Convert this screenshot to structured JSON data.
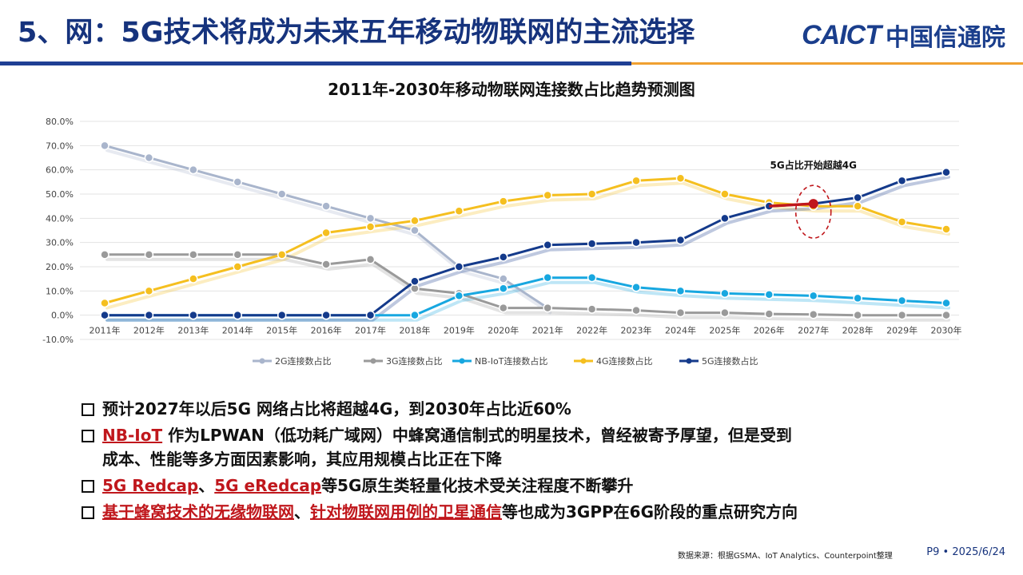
{
  "header": {
    "title": "5、网：5G技术将成为未来五年移动物联网的主流选择",
    "logo_latin": "CAICT",
    "logo_cn": "中国信通院"
  },
  "chart_data": {
    "type": "line",
    "title": "2011年-2030年移动物联网连接数占比趋势预测图",
    "categories": [
      "2011年",
      "2012年",
      "2013年",
      "2014年",
      "2015年",
      "2016年",
      "2017年",
      "2018年",
      "2019年",
      "2020年",
      "2021年",
      "2022年",
      "2023年",
      "2024年",
      "2025年",
      "2026年",
      "2027年",
      "2028年",
      "2029年",
      "2030年"
    ],
    "y_ticks": [
      "80.0%",
      "70.0%",
      "60.0%",
      "50.0%",
      "40.0%",
      "30.0%",
      "20.0%",
      "10.0%",
      "0.0%",
      "-10.0%"
    ],
    "ylim": [
      -10,
      80
    ],
    "series": [
      {
        "name": "2G连接数占比",
        "color": "#a9b5cc",
        "values": [
          70,
          65,
          60,
          55,
          50,
          45,
          40,
          35,
          20,
          15,
          3,
          null,
          null,
          null,
          null,
          null,
          null,
          null,
          null,
          null
        ]
      },
      {
        "name": "3G连接数占比",
        "color": "#9a9a9a",
        "values": [
          25,
          25,
          25,
          25,
          25,
          21,
          23,
          11,
          9,
          3,
          3,
          2.5,
          2,
          1,
          1,
          0.5,
          0.3,
          0,
          0,
          0
        ]
      },
      {
        "name": "NB-IoT连接数占比",
        "color": "#17a7e0",
        "values": [
          0,
          0,
          0,
          0,
          0,
          0,
          0,
          0,
          8,
          11,
          15.5,
          15.5,
          11.5,
          10,
          9,
          8.5,
          8,
          7,
          6,
          5
        ]
      },
      {
        "name": "4G连接数占比",
        "color": "#f5bf1f",
        "values": [
          5,
          10,
          15,
          20,
          25,
          34,
          36.5,
          39,
          43,
          47,
          49.5,
          50,
          55.5,
          56.5,
          50,
          46.5,
          45,
          45,
          38.5,
          35.5
        ]
      },
      {
        "name": "5G连接数占比",
        "color": "#143a8b",
        "values": [
          0,
          0,
          0,
          0,
          0,
          0,
          0,
          14,
          20,
          24,
          29,
          29.5,
          30,
          31,
          40,
          45,
          46,
          48.5,
          55.5,
          59
        ]
      }
    ],
    "annotation": {
      "text": "5G占比开始超越4G",
      "category_index": 16,
      "value": 46
    }
  },
  "bullets": [
    {
      "parts": [
        {
          "text": "预计2027年以后5G 网络占比将超越4G，到2030年占比近60%",
          "hl": false
        }
      ]
    },
    {
      "parts": [
        {
          "text": "NB-IoT",
          "hl": true
        },
        {
          "text": " 作为LPWAN（低功耗广域网）中蜂窝通信制式的明星技术，曾经被寄予厚望，但是受到",
          "hl": false
        }
      ],
      "cont": "成本、性能等多方面因素影响，其应用规模占比正在下降"
    },
    {
      "parts": [
        {
          "text": "5G Redcap",
          "hl": true
        },
        {
          "text": "、",
          "hl": false
        },
        {
          "text": "5G eRedcap",
          "hl": true
        },
        {
          "text": "等5G原生类轻量化技术受关注程度不断攀升",
          "hl": false
        }
      ]
    },
    {
      "parts": [
        {
          "text": "基于蜂窝技术的无缘物联网",
          "hl": true
        },
        {
          "text": "、",
          "hl": false
        },
        {
          "text": "针对物联网用例的卫星通信",
          "hl": true
        },
        {
          "text": "等也成为3GPP在6G阶段的重点研究方向",
          "hl": false
        }
      ]
    }
  ],
  "footer": {
    "source": "数据来源：根据GSMA、IoT Analytics、Counterpoint整理",
    "page": "P9 • 2025/6/24"
  }
}
